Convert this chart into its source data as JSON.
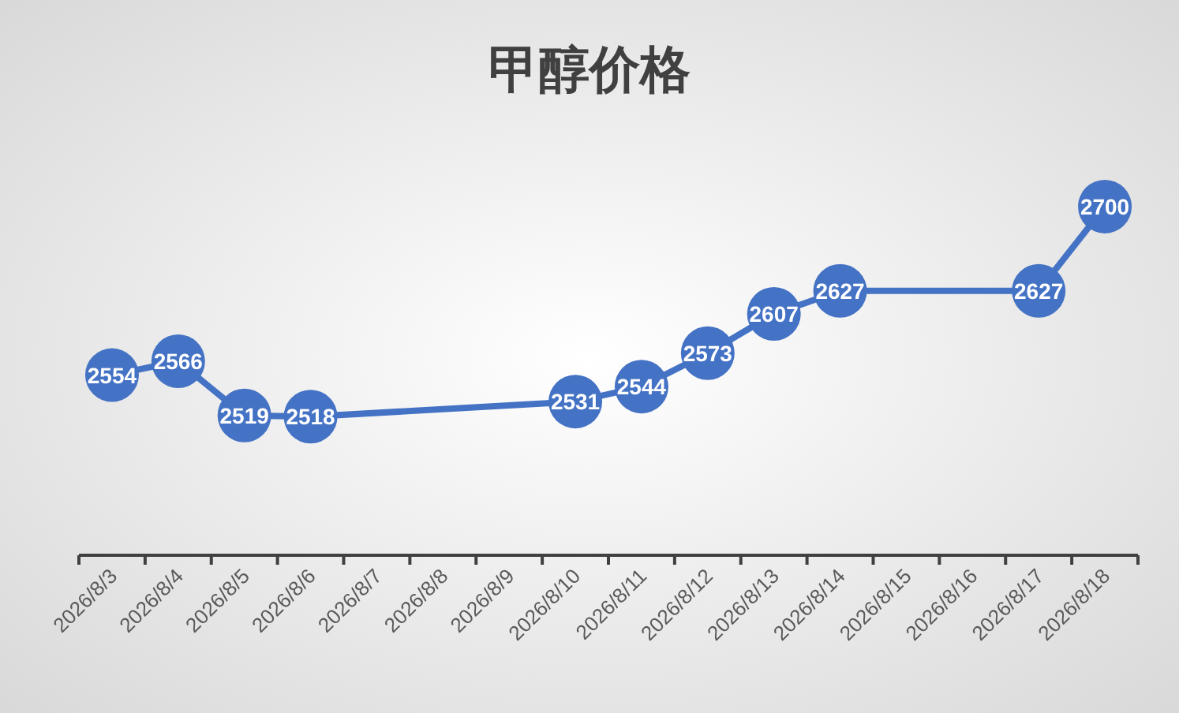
{
  "chart_data": {
    "type": "line",
    "title": "甲醇价格",
    "categories": [
      "2026/8/3",
      "2026/8/4",
      "2026/8/5",
      "2026/8/6",
      "2026/8/7",
      "2026/8/8",
      "2026/8/9",
      "2026/8/10",
      "2026/8/11",
      "2026/8/12",
      "2026/8/13",
      "2026/8/14",
      "2026/8/15",
      "2026/8/16",
      "2026/8/17",
      "2026/8/18"
    ],
    "series": [
      {
        "color": "#4472c4",
        "x": [
          "2026/8/3",
          "2026/8/4",
          "2026/8/5",
          "2026/8/6",
          "2026/8/10",
          "2026/8/11",
          "2026/8/12",
          "2026/8/13",
          "2026/8/14",
          "2026/8/17",
          "2026/8/18"
        ],
        "values": [
          2554,
          2566,
          2519,
          2518,
          2531,
          2544,
          2573,
          2607,
          2627,
          2627,
          2700
        ]
      }
    ],
    "data_labels": true,
    "marker": "circle",
    "line_style": "solid"
  }
}
